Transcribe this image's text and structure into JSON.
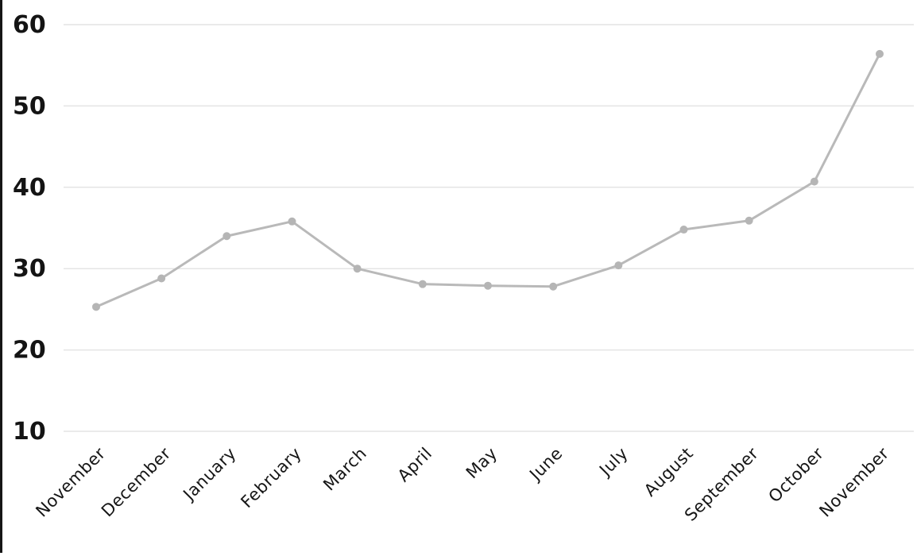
{
  "chart_data": {
    "type": "line",
    "categories": [
      "November",
      "December",
      "January",
      "February",
      "March",
      "April",
      "May",
      "June",
      "July",
      "August",
      "September",
      "October",
      "November"
    ],
    "values": [
      25.3,
      28.8,
      34.0,
      35.8,
      30.0,
      28.1,
      27.9,
      27.8,
      30.4,
      34.8,
      35.9,
      40.7,
      56.4
    ],
    "y_ticks": [
      60,
      50,
      40,
      30,
      20,
      10
    ],
    "ylim": [
      10,
      62
    ],
    "xlabel": "",
    "ylabel": "",
    "grid": true,
    "legend_position": "none",
    "x_label_rotation_deg": -45,
    "colors": {
      "line": "#b9b9b9",
      "marker": "#b5b5b5",
      "gridline": "#e4e4e4",
      "y_tick_label": "#141414",
      "x_tick_label": "#161616",
      "background": "#ffffff",
      "left_border": "#161616"
    }
  }
}
